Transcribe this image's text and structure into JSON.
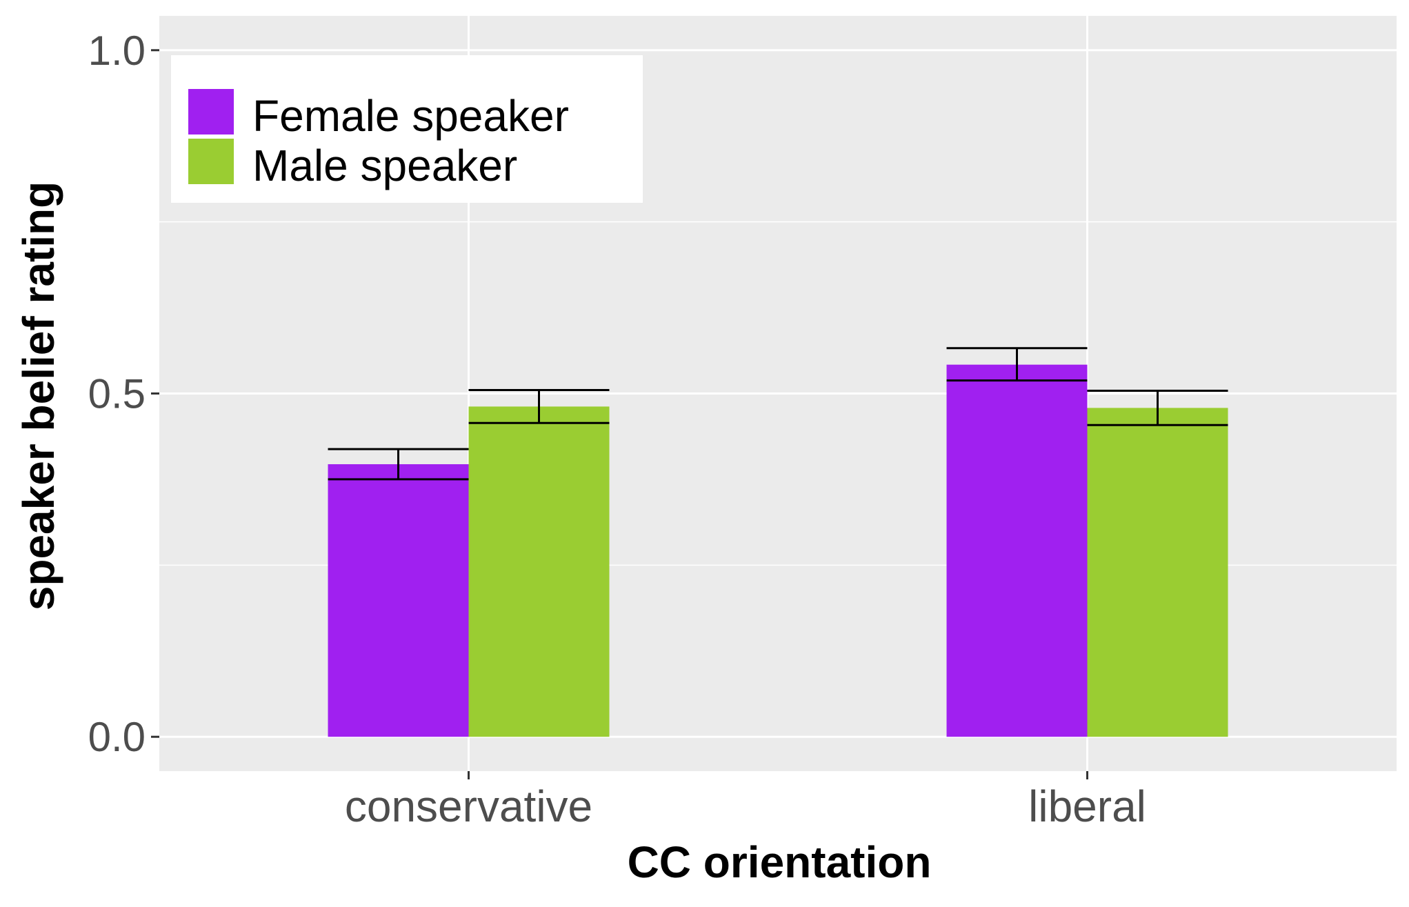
{
  "chart_data": {
    "type": "bar",
    "xlabel": "CC orientation",
    "ylabel": "speaker belief rating",
    "categories": [
      "conservative",
      "liberal"
    ],
    "series": [
      {
        "name": "Female speaker",
        "color": "#A020F0",
        "values": [
          0.397,
          0.542
        ],
        "error_low": [
          0.375,
          0.519
        ],
        "error_high": [
          0.419,
          0.566
        ]
      },
      {
        "name": "Male speaker",
        "color": "#9ACD32",
        "values": [
          0.481,
          0.479
        ],
        "error_low": [
          0.457,
          0.454
        ],
        "error_high": [
          0.505,
          0.504
        ]
      }
    ],
    "ylim": [
      -0.05,
      1.05
    ],
    "yticks": [
      0.0,
      0.5,
      1.0
    ],
    "ytick_labels": [
      "0.0",
      "0.5",
      "1.0"
    ],
    "grid": true,
    "legend_position": "top-left",
    "panel_background": "#EBEBEB"
  }
}
